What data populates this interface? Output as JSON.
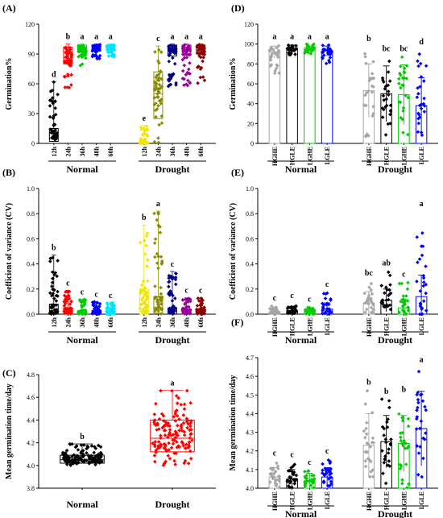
{
  "chart_data": [
    {
      "panel": "(A)",
      "type": "box",
      "ylabel": "Germination%",
      "ylim": [
        0,
        120
      ],
      "yticks": [
        0,
        30,
        60,
        90,
        120
      ],
      "groups": [
        {
          "label": "Normal",
          "categories": [
            "12h",
            "24h",
            "36h",
            "48h",
            "60h"
          ]
        },
        {
          "label": "Drought",
          "categories": [
            "12h",
            "24h",
            "36h",
            "48h",
            "60h"
          ]
        }
      ],
      "series": [
        {
          "group": "Normal",
          "cat": "12h",
          "color": "#000000",
          "median": 5,
          "q1": 2,
          "q3": 15,
          "min": 0,
          "max": 62,
          "sig": "d"
        },
        {
          "group": "Normal",
          "cat": "24h",
          "color": "#ff0000",
          "median": 92,
          "q1": 80,
          "q3": 97,
          "min": 55,
          "max": 100,
          "sig": "b"
        },
        {
          "group": "Normal",
          "cat": "36h",
          "color": "#00cc00",
          "median": 96,
          "q1": 92,
          "q3": 99,
          "min": 78,
          "max": 100,
          "sig": "a"
        },
        {
          "group": "Normal",
          "cat": "48h",
          "color": "#0000ff",
          "median": 97,
          "q1": 93,
          "q3": 99,
          "min": 85,
          "max": 100,
          "sig": "a"
        },
        {
          "group": "Normal",
          "cat": "60h",
          "color": "#00e5ff",
          "median": 97,
          "q1": 94,
          "q3": 99,
          "min": 87,
          "max": 100,
          "sig": "a"
        },
        {
          "group": "Drought",
          "cat": "12h",
          "color": "#f2e600",
          "median": 0,
          "q1": 0,
          "q3": 1,
          "min": 0,
          "max": 18,
          "sig": "e"
        },
        {
          "group": "Drought",
          "cat": "24h",
          "color": "#8b8b00",
          "median": 50,
          "q1": 25,
          "q3": 72,
          "min": 0,
          "max": 98,
          "sig": "c"
        },
        {
          "group": "Drought",
          "cat": "36h",
          "color": "#000080",
          "median": 95,
          "q1": 88,
          "q3": 99,
          "min": 45,
          "max": 100,
          "sig": "a"
        },
        {
          "group": "Drought",
          "cat": "48h",
          "color": "#990099",
          "median": 96,
          "q1": 89,
          "q3": 99,
          "min": 58,
          "max": 100,
          "sig": "a"
        },
        {
          "group": "Drought",
          "cat": "60h",
          "color": "#8b0000",
          "median": 96,
          "q1": 90,
          "q3": 99,
          "min": 60,
          "max": 100,
          "sig": "a"
        }
      ]
    },
    {
      "panel": "(B)",
      "type": "box",
      "ylabel": "Coefficient of variance (CV)",
      "ylim": [
        0,
        1.0
      ],
      "yticks": [
        0.0,
        0.2,
        0.4,
        0.6,
        0.8,
        1.0
      ],
      "groups": [
        {
          "label": "Normal",
          "categories": [
            "12h",
            "24h",
            "36h",
            "48h",
            "60h"
          ]
        },
        {
          "label": "Drought",
          "categories": [
            "12h",
            "24h",
            "36h",
            "48h",
            "60h"
          ]
        }
      ],
      "series": [
        {
          "group": "Normal",
          "cat": "12h",
          "color": "#000000",
          "median": 0.03,
          "q1": 0.0,
          "q3": 0.08,
          "min": 0,
          "max": 0.47,
          "sig": "b"
        },
        {
          "group": "Normal",
          "cat": "24h",
          "color": "#ff0000",
          "median": 0.02,
          "q1": 0.01,
          "q3": 0.05,
          "min": 0,
          "max": 0.19,
          "sig": "c"
        },
        {
          "group": "Normal",
          "cat": "36h",
          "color": "#00cc00",
          "median": 0.02,
          "q1": 0.0,
          "q3": 0.03,
          "min": 0,
          "max": 0.12,
          "sig": "c"
        },
        {
          "group": "Normal",
          "cat": "48h",
          "color": "#0000ff",
          "median": 0.02,
          "q1": 0.0,
          "q3": 0.03,
          "min": 0,
          "max": 0.1,
          "sig": "c"
        },
        {
          "group": "Normal",
          "cat": "60h",
          "color": "#00e5ff",
          "median": 0.01,
          "q1": 0.0,
          "q3": 0.03,
          "min": 0,
          "max": 0.09,
          "sig": "c"
        },
        {
          "group": "Drought",
          "cat": "12h",
          "color": "#f2e600",
          "median": 0.0,
          "q1": 0.0,
          "q3": 0.2,
          "min": 0,
          "max": 0.71,
          "sig": "b"
        },
        {
          "group": "Drought",
          "cat": "24h",
          "color": "#8b8b00",
          "median": 0.05,
          "q1": 0.01,
          "q3": 0.14,
          "min": 0,
          "max": 0.82,
          "sig": "a"
        },
        {
          "group": "Drought",
          "cat": "36h",
          "color": "#000080",
          "median": 0.02,
          "q1": 0.0,
          "q3": 0.05,
          "min": 0,
          "max": 0.34,
          "sig": "c"
        },
        {
          "group": "Drought",
          "cat": "48h",
          "color": "#990099",
          "median": 0.02,
          "q1": 0.0,
          "q3": 0.04,
          "min": 0,
          "max": 0.13,
          "sig": "c"
        },
        {
          "group": "Drought",
          "cat": "60h",
          "color": "#8b0000",
          "median": 0.02,
          "q1": 0.0,
          "q3": 0.04,
          "min": 0,
          "max": 0.13,
          "sig": "c"
        }
      ]
    },
    {
      "panel": "(C)",
      "type": "box",
      "ylabel": "Mean germination time/day",
      "ylim": [
        3.8,
        4.8
      ],
      "yticks": [
        3.8,
        4.0,
        4.2,
        4.4,
        4.6,
        4.8
      ],
      "groups": [
        {
          "label": "Normal",
          "categories": [
            ""
          ]
        },
        {
          "label": "Drought",
          "categories": [
            ""
          ]
        }
      ],
      "series": [
        {
          "group": "Normal",
          "cat": "",
          "color": "#000000",
          "median": 4.05,
          "q1": 4.02,
          "q3": 4.09,
          "min": 4.0,
          "max": 4.19,
          "sig": "b"
        },
        {
          "group": "Drought",
          "cat": "",
          "color": "#ff0000",
          "median": 4.24,
          "q1": 4.12,
          "q3": 4.4,
          "min": 4.0,
          "max": 4.66,
          "sig": "a"
        }
      ]
    },
    {
      "panel": "(D)",
      "type": "bar",
      "ylabel": "Germination%",
      "ylim": [
        0,
        120
      ],
      "yticks": [
        0,
        20,
        40,
        60,
        80,
        100,
        120
      ],
      "groups": [
        {
          "label": "Normal",
          "categories": [
            "HGHE",
            "HGLE",
            "LGHE",
            "LGLE"
          ]
        },
        {
          "label": "Drought",
          "categories": [
            "HGHE",
            "HGLE",
            "LGHE",
            "LGLE"
          ]
        }
      ],
      "series": [
        {
          "group": "Normal",
          "cat": "HGHE",
          "color": "#a6a6a6",
          "value": 92,
          "err": 6,
          "min": 65,
          "max": 100,
          "sig": "a"
        },
        {
          "group": "Normal",
          "cat": "HGLE",
          "color": "#000000",
          "value": 96,
          "err": 3,
          "min": 88,
          "max": 100,
          "sig": "a"
        },
        {
          "group": "Normal",
          "cat": "LGHE",
          "color": "#00cc00",
          "value": 96,
          "err": 2,
          "min": 90,
          "max": 100,
          "sig": "a"
        },
        {
          "group": "Normal",
          "cat": "LGLE",
          "color": "#0000ff",
          "value": 93,
          "err": 5,
          "min": 80,
          "max": 100,
          "sig": "a"
        },
        {
          "group": "Drought",
          "cat": "HGHE",
          "color": "#a6a6a6",
          "value": 53,
          "err": 27,
          "min": 5,
          "max": 98,
          "sig": "b"
        },
        {
          "group": "Drought",
          "cat": "HGLE",
          "color": "#000000",
          "value": 50,
          "err": 28,
          "min": 3,
          "max": 88,
          "sig": "bc"
        },
        {
          "group": "Drought",
          "cat": "LGHE",
          "color": "#00cc00",
          "value": 49,
          "err": 30,
          "min": 5,
          "max": 88,
          "sig": "bc"
        },
        {
          "group": "Drought",
          "cat": "LGLE",
          "color": "#0000ff",
          "value": 38,
          "err": 28,
          "min": 0,
          "max": 95,
          "sig": "d"
        }
      ]
    },
    {
      "panel": "(E)",
      "type": "bar",
      "ylabel": "Coefficient of variance (CV)",
      "ylim": [
        0,
        1.0
      ],
      "yticks": [
        0.0,
        0.2,
        0.4,
        0.6,
        0.8,
        1.0
      ],
      "groups": [
        {
          "label": "Normal",
          "categories": [
            "HGHE",
            "HGLE",
            "LGHE",
            "LGLE"
          ]
        },
        {
          "label": "Drought",
          "categories": [
            "HGHE",
            "HGLE",
            "LGHE",
            "LGLE"
          ]
        }
      ],
      "series": [
        {
          "group": "Normal",
          "cat": "HGHE",
          "color": "#a6a6a6",
          "value": 0.02,
          "err": 0.02,
          "min": 0,
          "max": 0.07,
          "sig": "c"
        },
        {
          "group": "Normal",
          "cat": "HGLE",
          "color": "#000000",
          "value": 0.03,
          "err": 0.03,
          "min": 0,
          "max": 0.09,
          "sig": "c"
        },
        {
          "group": "Normal",
          "cat": "LGHE",
          "color": "#00cc00",
          "value": 0.02,
          "err": 0.02,
          "min": 0,
          "max": 0.06,
          "sig": "c"
        },
        {
          "group": "Normal",
          "cat": "LGLE",
          "color": "#0000ff",
          "value": 0.04,
          "err": 0.05,
          "min": 0,
          "max": 0.18,
          "sig": "c"
        },
        {
          "group": "Drought",
          "cat": "HGHE",
          "color": "#a6a6a6",
          "value": 0.09,
          "err": 0.09,
          "min": 0,
          "max": 0.27,
          "sig": "bc"
        },
        {
          "group": "Drought",
          "cat": "HGLE",
          "color": "#000000",
          "value": 0.11,
          "err": 0.09,
          "min": 0,
          "max": 0.35,
          "sig": "ab"
        },
        {
          "group": "Drought",
          "cat": "LGHE",
          "color": "#00cc00",
          "value": 0.05,
          "err": 0.07,
          "min": 0,
          "max": 0.26,
          "sig": "c"
        },
        {
          "group": "Drought",
          "cat": "LGLE",
          "color": "#0000ff",
          "value": 0.14,
          "err": 0.17,
          "min": 0,
          "max": 0.82,
          "sig": "a"
        }
      ]
    },
    {
      "panel": "(F)",
      "type": "bar",
      "ylabel": "Mean germination time/day",
      "ylim": [
        4.0,
        4.7
      ],
      "yticks": [
        4.0,
        4.1,
        4.2,
        4.3,
        4.4,
        4.5,
        4.6,
        4.7
      ],
      "groups": [
        {
          "label": "Normal",
          "categories": [
            "HGHE",
            "HGLE",
            "LGHE",
            "LGLE"
          ]
        },
        {
          "label": "Drought",
          "categories": [
            "HGHE",
            "HGLE",
            "LGHE",
            "LGLE"
          ]
        }
      ],
      "series": [
        {
          "group": "Normal",
          "cat": "HGHE",
          "color": "#a6a6a6",
          "value": 4.06,
          "err": 0.05,
          "min": 4.0,
          "max": 4.15,
          "sig": "c"
        },
        {
          "group": "Normal",
          "cat": "HGLE",
          "color": "#000000",
          "value": 4.05,
          "err": 0.05,
          "min": 4.0,
          "max": 4.14,
          "sig": "c"
        },
        {
          "group": "Normal",
          "cat": "LGHE",
          "color": "#00cc00",
          "value": 4.04,
          "err": 0.04,
          "min": 4.0,
          "max": 4.1,
          "sig": "c"
        },
        {
          "group": "Normal",
          "cat": "LGLE",
          "color": "#0000ff",
          "value": 4.06,
          "err": 0.05,
          "min": 4.0,
          "max": 4.16,
          "sig": "c"
        },
        {
          "group": "Drought",
          "cat": "HGHE",
          "color": "#a6a6a6",
          "value": 4.23,
          "err": 0.17,
          "min": 4.0,
          "max": 4.53,
          "sig": "b"
        },
        {
          "group": "Drought",
          "cat": "HGLE",
          "color": "#000000",
          "value": 4.25,
          "err": 0.14,
          "min": 4.0,
          "max": 4.48,
          "sig": "b"
        },
        {
          "group": "Drought",
          "cat": "LGHE",
          "color": "#00cc00",
          "value": 4.24,
          "err": 0.15,
          "min": 4.0,
          "max": 4.49,
          "sig": "b"
        },
        {
          "group": "Drought",
          "cat": "LGLE",
          "color": "#0000ff",
          "value": 4.32,
          "err": 0.2,
          "min": 4.0,
          "max": 4.65,
          "sig": "a"
        }
      ]
    }
  ]
}
